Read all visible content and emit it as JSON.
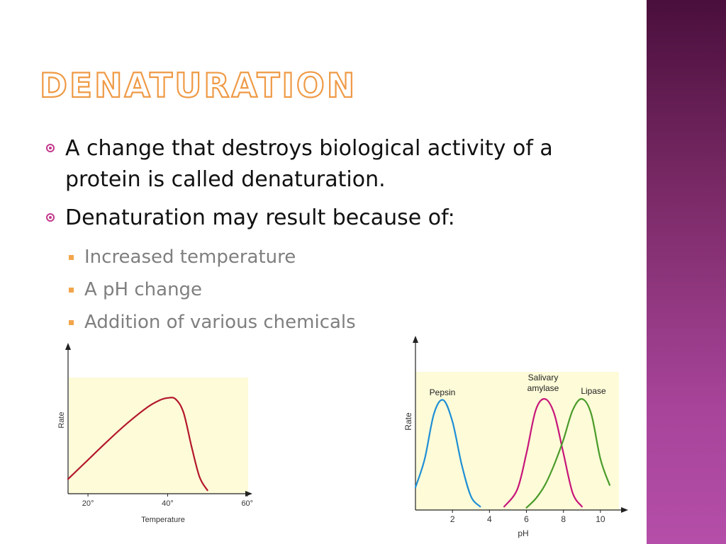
{
  "slide": {
    "title": "Denaturation",
    "bullets": [
      "A change that destroys biological activity of a protein is called denaturation.",
      "Denaturation may result because of:"
    ],
    "sub_bullets": [
      "Increased temperature",
      "A pH change",
      "Addition of various chemicals"
    ],
    "colors": {
      "title_outline": "#ef9a46",
      "bullet_mark": "#c2398c",
      "sub_mark": "#f2a54a",
      "side_band": "#8e3380",
      "chart_fill": "#fdfbd8"
    }
  },
  "chart_data": [
    {
      "type": "line",
      "xlabel": "Temperature",
      "ylabel": "Rate",
      "x_ticks": [
        "20°",
        "40°",
        "60°"
      ],
      "x_tick_values": [
        20,
        40,
        60
      ],
      "xlim": [
        15,
        62
      ],
      "ylim": [
        0,
        1
      ],
      "series": [
        {
          "color": "#b3172b",
          "x": [
            15,
            20,
            25,
            30,
            35,
            38,
            40,
            42,
            44,
            46,
            48,
            50
          ],
          "y": [
            0.13,
            0.3,
            0.47,
            0.63,
            0.77,
            0.83,
            0.85,
            0.84,
            0.72,
            0.42,
            0.15,
            0.03
          ]
        }
      ]
    },
    {
      "type": "line",
      "xlabel": "pH",
      "ylabel": "Rate",
      "x_ticks": [
        "2",
        "4",
        "6",
        "8",
        "10"
      ],
      "x_tick_values": [
        2,
        4,
        6,
        8,
        10
      ],
      "xlim": [
        0,
        11.5
      ],
      "ylim": [
        0,
        1
      ],
      "series": [
        {
          "name": "Pepsin",
          "color": "#1f8fd6",
          "x": [
            0,
            0.5,
            1,
            1.5,
            2,
            2.5,
            3,
            3.5
          ],
          "y": [
            0.2,
            0.45,
            0.85,
            0.97,
            0.78,
            0.4,
            0.12,
            0.03
          ]
        },
        {
          "name": "Salivary amylase",
          "color": "#c7157a",
          "x": [
            4.8,
            5.5,
            6,
            6.5,
            7,
            7.5,
            8,
            8.5,
            9
          ],
          "y": [
            0.03,
            0.18,
            0.5,
            0.88,
            0.98,
            0.85,
            0.5,
            0.15,
            0.03
          ]
        },
        {
          "name": "Lipase",
          "color": "#4a9b2a",
          "x": [
            6,
            6.5,
            7,
            7.5,
            8,
            8.5,
            9,
            9.5,
            10,
            10.5
          ],
          "y": [
            0.02,
            0.1,
            0.22,
            0.4,
            0.62,
            0.88,
            0.98,
            0.85,
            0.45,
            0.22
          ]
        }
      ]
    }
  ]
}
